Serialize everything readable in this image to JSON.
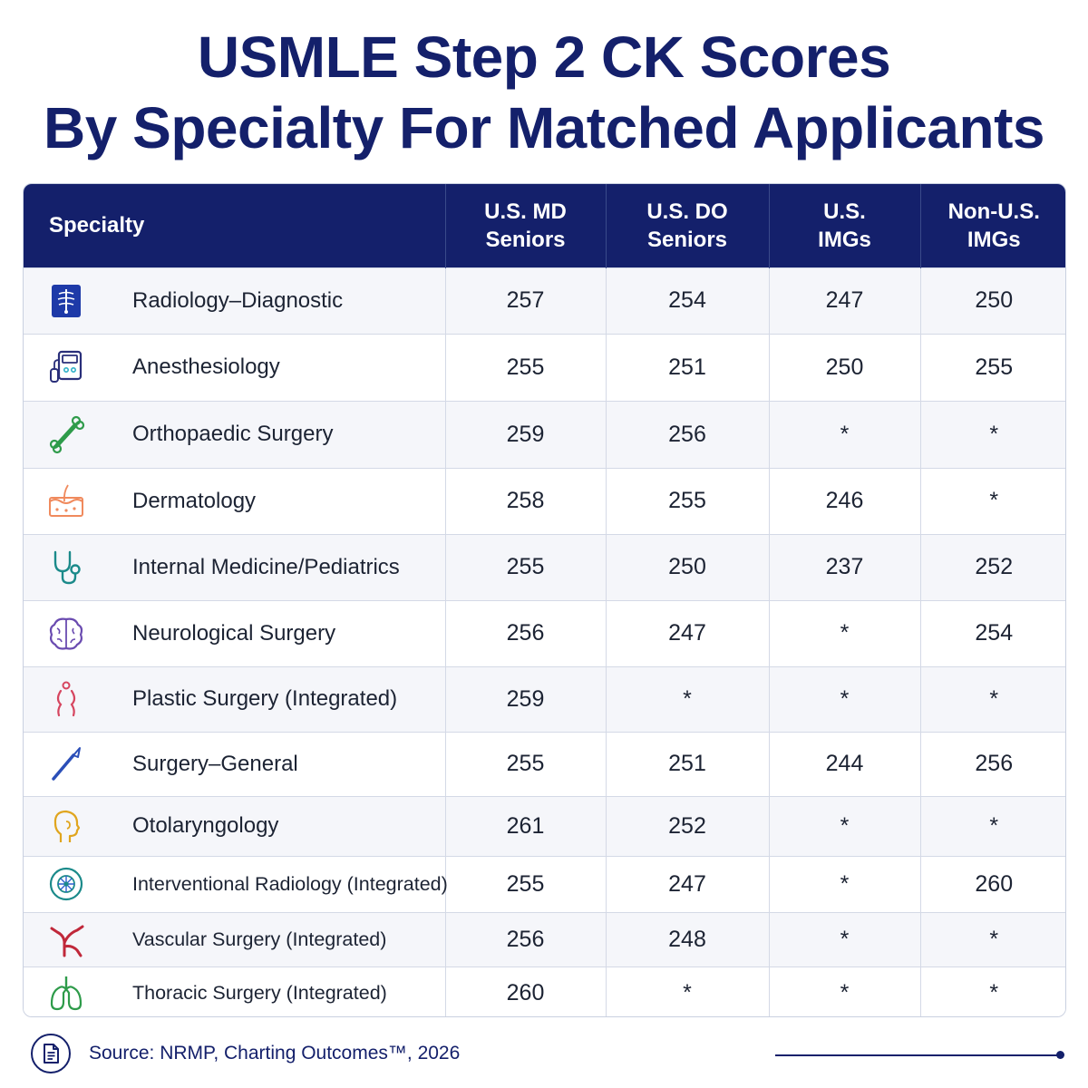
{
  "title": {
    "line1": "USMLE Step 2 CK Scores",
    "line2": "By Specialty For Matched Applicants"
  },
  "table": {
    "headers": {
      "specialty": "Specialty",
      "md": [
        "U.S. MD",
        "Seniors"
      ],
      "do": [
        "U.S. DO",
        "Seniors"
      ],
      "usimg": [
        "U.S.",
        "IMGs"
      ],
      "nonusimg": [
        "Non-U.S.",
        "IMGs"
      ]
    }
  },
  "chart_data": {
    "type": "table",
    "title": "USMLE Step 2 CK Scores By Specialty For Matched Applicants",
    "columns": [
      "Specialty",
      "U.S. MD Seniors",
      "U.S. DO Seniors",
      "U.S. IMGs",
      "Non-U.S. IMGs"
    ],
    "rows": [
      {
        "specialty": "Radiology–Diagnostic",
        "icon": "xray-icon",
        "color": "#1e3aa8",
        "values": [
          "257",
          "254",
          "247",
          "250"
        ]
      },
      {
        "specialty": "Anesthesiology",
        "icon": "anesthesia-machine-icon",
        "color": "#2a2f7a",
        "values": [
          "255",
          "251",
          "250",
          "255"
        ]
      },
      {
        "specialty": "Orthopaedic Surgery",
        "icon": "bone-icon",
        "color": "#2e9b4a",
        "values": [
          "259",
          "256",
          "*",
          "*"
        ]
      },
      {
        "specialty": "Dermatology",
        "icon": "skin-layers-icon",
        "color": "#f08a5d",
        "values": [
          "258",
          "255",
          "246",
          "*"
        ]
      },
      {
        "specialty": "Internal Medicine/Pediatrics",
        "icon": "stethoscope-icon",
        "color": "#1b8a8a",
        "values": [
          "255",
          "250",
          "237",
          "252"
        ]
      },
      {
        "specialty": "Neurological Surgery",
        "icon": "brain-icon",
        "color": "#6a4bb0",
        "values": [
          "256",
          "247",
          "*",
          "254"
        ]
      },
      {
        "specialty": "Plastic Surgery (Integrated)",
        "icon": "body-contour-icon",
        "color": "#d6455f",
        "values": [
          "259",
          "*",
          "*",
          "*"
        ]
      },
      {
        "specialty": "Surgery–General",
        "icon": "scalpel-icon",
        "color": "#2b4fb8",
        "values": [
          "255",
          "251",
          "244",
          "256"
        ]
      },
      {
        "specialty": "Otolaryngology",
        "icon": "head-ear-icon",
        "color": "#e0a51e",
        "values": [
          "261",
          "252",
          "*",
          "*"
        ]
      },
      {
        "specialty": "Interventional Radiology (Integrated)",
        "icon": "radiology-scan-icon",
        "color": "#1b8a8a",
        "values": [
          "255",
          "247",
          "*",
          "260"
        ]
      },
      {
        "specialty": "Vascular Surgery (Integrated)",
        "icon": "blood-vessel-icon",
        "color": "#c0283a",
        "values": [
          "256",
          "248",
          "*",
          "*"
        ]
      },
      {
        "specialty": "Thoracic Surgery (Integrated)",
        "icon": "lungs-icon",
        "color": "#2e9b4a",
        "values": [
          "260",
          "*",
          "*",
          "*"
        ]
      }
    ]
  },
  "footer": {
    "source": "Source: NRMP, Charting Outcomes™, 2026",
    "icon": "document-icon"
  }
}
